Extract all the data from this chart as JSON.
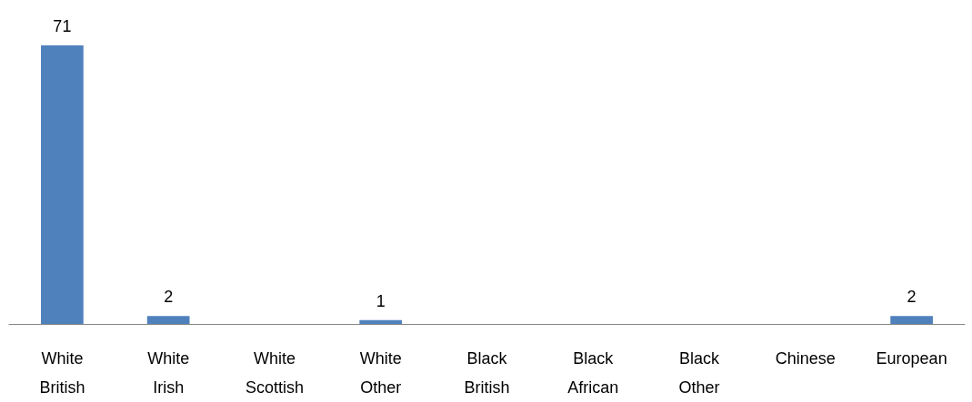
{
  "chart_data": {
    "type": "bar",
    "categories": [
      "White British",
      "White Irish",
      "White Scottish",
      "White Other",
      "Black British",
      "Black African",
      "Black Other",
      "Chinese",
      "European"
    ],
    "values": [
      71,
      2,
      0,
      1,
      0,
      0,
      0,
      0,
      2
    ],
    "value_labels": [
      "71",
      "2",
      null,
      "1",
      null,
      null,
      null,
      null,
      "2"
    ],
    "color": "#4f81bd"
  }
}
